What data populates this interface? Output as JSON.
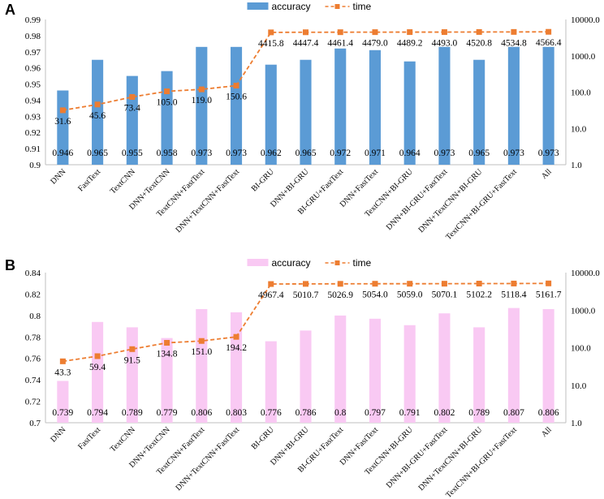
{
  "chart_data": [
    {
      "panel": "A",
      "type": "bar+line",
      "legend": {
        "bar": "accuracy",
        "line": "time",
        "placement": "top-center"
      },
      "categories": [
        "DNN",
        "FastText",
        "TextCNN",
        "DNN+TextCNN",
        "TextCNN+FastText",
        "DNN+TextCNN+FastText",
        "BI-GRU",
        "DNN+BI-GRU",
        "BI-GRU+FastText",
        "DNN+FastText",
        "TextCNN+BI-GRU",
        "DNN+BI-GRU+FastText",
        "DNN+TextCNN+BI-GRU",
        "TextCNN+BI-GRU+FastText",
        "All"
      ],
      "series": [
        {
          "name": "accuracy",
          "type": "bar",
          "axis": "left",
          "values": [
            0.946,
            0.965,
            0.955,
            0.958,
            0.973,
            0.973,
            0.962,
            0.965,
            0.972,
            0.971,
            0.964,
            0.973,
            0.965,
            0.973,
            0.973
          ],
          "labels": [
            "0.946",
            "0.965",
            "0.955",
            "0.958",
            "0.973",
            "0.973",
            "0.962",
            "0.965",
            "0.972",
            "0.971",
            "0.964",
            "0.973",
            "0.965",
            "0.973",
            "0.973"
          ]
        },
        {
          "name": "time",
          "type": "line",
          "axis": "right",
          "values": [
            31.6,
            45.6,
            73.4,
            105.0,
            119.0,
            150.6,
            4415.8,
            4447.4,
            4461.4,
            4479.0,
            4489.2,
            4493.0,
            4520.8,
            4534.8,
            4566.4
          ],
          "labels": [
            "31.6",
            "45.6",
            "73.4",
            "105.0",
            "119.0",
            "150.6",
            "4415.8",
            "4447.4",
            "4461.4",
            "4479.0",
            "4489.2",
            "4493.0",
            "4520.8",
            "4534.8",
            "4566.4"
          ]
        }
      ],
      "ylim_left": [
        0.9,
        0.99
      ],
      "yticks_left": [
        "0.9",
        "0.91",
        "0.92",
        "0.93",
        "0.94",
        "0.95",
        "0.96",
        "0.97",
        "0.98",
        "0.99"
      ],
      "ylim_right": [
        1,
        10000
      ],
      "yscale_right": "log",
      "yticks_right": [
        "1.0",
        "10.0",
        "100.0",
        "1000.0",
        "10000.0"
      ],
      "colors": {
        "bar": "#5b9bd5",
        "line": "#ed7d31"
      }
    },
    {
      "panel": "B",
      "type": "bar+line",
      "legend": {
        "bar": "accuracy",
        "line": "time",
        "placement": "top-center"
      },
      "categories": [
        "DNN",
        "FastText",
        "TextCNN",
        "DNN+TextCNN",
        "TextCNN+FastText",
        "DNN+TextCNN+FastText",
        "BI-GRU",
        "DNN+BI-GRU",
        "BI-GRU+FastText",
        "DNN+FastText",
        "TextCNN+BI-GRU",
        "DNN+BI-GRU+FastText",
        "DNN+TextCNN+BI-GRU",
        "TextCNN+BI-GRU+FastText",
        "All"
      ],
      "series": [
        {
          "name": "accuracy",
          "type": "bar",
          "axis": "left",
          "values": [
            0.739,
            0.794,
            0.789,
            0.779,
            0.806,
            0.803,
            0.776,
            0.786,
            0.8,
            0.797,
            0.791,
            0.802,
            0.789,
            0.807,
            0.806
          ],
          "labels": [
            "0.739",
            "0.794",
            "0.789",
            "0.779",
            "0.806",
            "0.803",
            "0.776",
            "0.786",
            "0.8",
            "0.797",
            "0.791",
            "0.802",
            "0.789",
            "0.807",
            "0.806"
          ]
        },
        {
          "name": "time",
          "type": "line",
          "axis": "right",
          "values": [
            43.3,
            59.4,
            91.5,
            134.8,
            151.0,
            194.2,
            4967.4,
            5010.7,
            5026.9,
            5054.0,
            5059.0,
            5070.1,
            5102.2,
            5118.4,
            5161.7
          ],
          "labels": [
            "43.3",
            "59.4",
            "91.5",
            "134.8",
            "151.0",
            "194.2",
            "4967.4",
            "5010.7",
            "5026.9",
            "5054.0",
            "5059.0",
            "5070.1",
            "5102.2",
            "5118.4",
            "5161.7"
          ]
        }
      ],
      "ylim_left": [
        0.7,
        0.84
      ],
      "yticks_left": [
        "0.7",
        "0.72",
        "0.74",
        "0.76",
        "0.78",
        "0.8",
        "0.82",
        "0.84"
      ],
      "ylim_right": [
        1,
        10000
      ],
      "yscale_right": "log",
      "yticks_right": [
        "1.0",
        "10.0",
        "100.0",
        "1000.0",
        "10000.0"
      ],
      "colors": {
        "bar": "#f9c9f3",
        "line": "#ed7d31"
      }
    }
  ]
}
